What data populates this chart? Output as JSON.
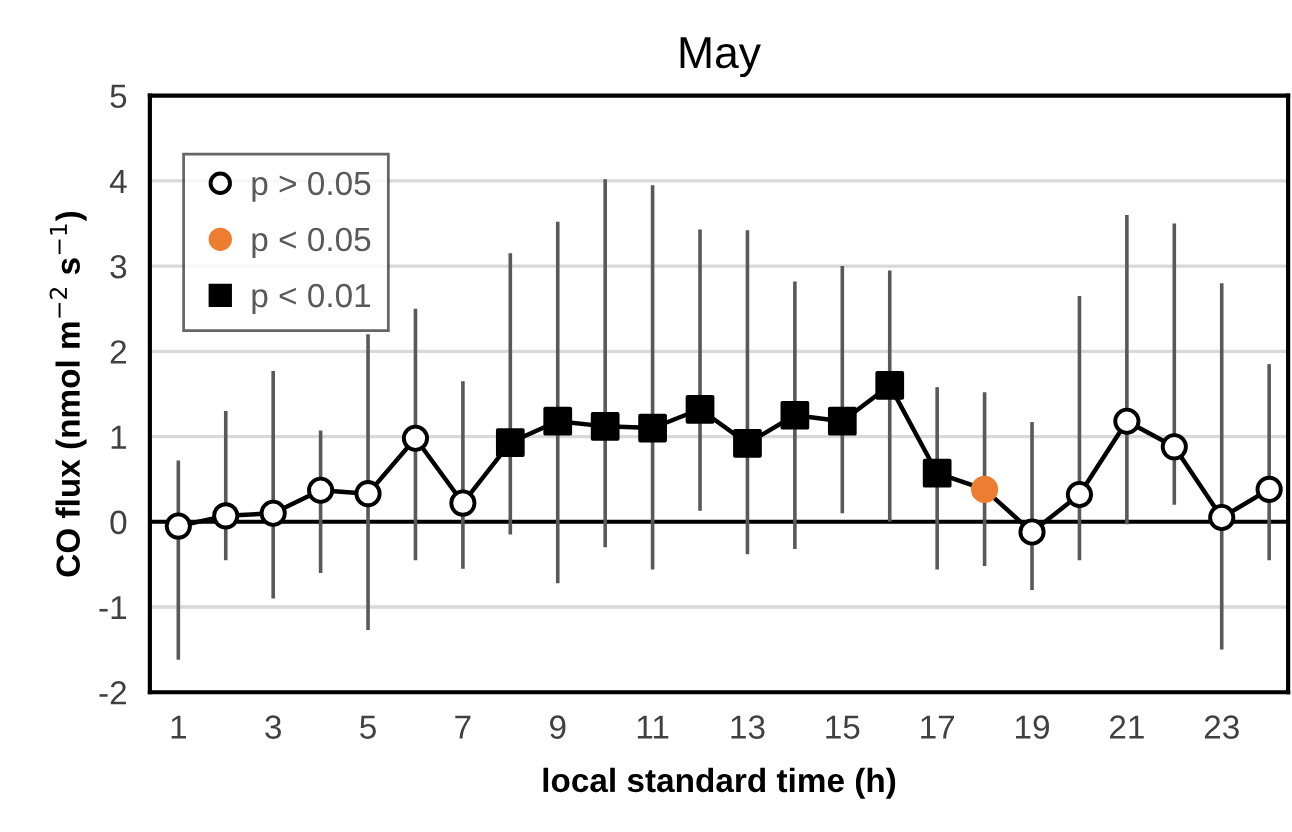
{
  "chart_data": {
    "type": "line",
    "title": "May",
    "xlabel": "local standard time (h)",
    "ylabel": "CO flux (nmol m$^{−2}$ s$^{−1}$)",
    "x": [
      1,
      2,
      3,
      4,
      5,
      6,
      7,
      8,
      9,
      10,
      11,
      12,
      13,
      14,
      15,
      16,
      17,
      18,
      19,
      20,
      21,
      22,
      23,
      24
    ],
    "series": [
      {
        "color": "#000000",
        "marker": "none",
        "values": [
          -0.05,
          0.07,
          0.1,
          0.37,
          0.33,
          0.98,
          0.22,
          0.93,
          1.18,
          1.12,
          1.1,
          1.32,
          0.92,
          1.25,
          1.18,
          1.6,
          0.57,
          0.38,
          -0.12,
          0.32,
          1.18,
          0.88,
          0.05,
          0.38
        ]
      },
      {
        "type": "scatter",
        "name": "p > 0.05",
        "color": "#ffffff",
        "marker": "circle",
        "x": [
          1,
          2,
          3,
          4,
          5,
          6,
          7,
          19,
          20,
          21,
          22,
          23,
          24
        ],
        "values": [
          -0.05,
          0.07,
          0.1,
          0.37,
          0.33,
          0.98,
          0.22,
          -0.12,
          0.32,
          1.18,
          0.88,
          0.05,
          0.38
        ],
        "errors": [
          [
            -1.62,
            0.72
          ],
          [
            -0.45,
            1.3
          ],
          [
            -0.9,
            1.77
          ],
          [
            -0.6,
            1.07
          ],
          [
            -1.27,
            2.2
          ],
          [
            -0.45,
            2.5
          ],
          [
            -0.55,
            1.65
          ],
          [
            -0.8,
            1.17
          ],
          [
            -0.45,
            2.65
          ],
          [
            -0.03,
            3.6
          ],
          [
            0.2,
            3.5
          ],
          [
            -1.5,
            2.8
          ],
          [
            -0.45,
            1.85
          ]
        ]
      },
      {
        "type": "scatter",
        "name": "p < 0.05",
        "color": "#ed7d31",
        "marker": "circle",
        "x": [
          18
        ],
        "values": [
          0.38
        ],
        "errors": [
          [
            -0.52,
            1.52
          ]
        ]
      },
      {
        "type": "scatter",
        "name": "p < 0.01",
        "color": "#000000",
        "marker": "square",
        "x": [
          8,
          9,
          10,
          11,
          12,
          13,
          14,
          15,
          16,
          17
        ],
        "values": [
          0.93,
          1.18,
          1.12,
          1.1,
          1.32,
          0.92,
          1.25,
          1.18,
          1.6,
          0.57
        ],
        "errors": [
          [
            -0.15,
            3.15
          ],
          [
            -0.72,
            3.52
          ],
          [
            -0.3,
            4.02
          ],
          [
            -0.56,
            3.95
          ],
          [
            0.13,
            3.43
          ],
          [
            -0.38,
            3.42
          ],
          [
            -0.32,
            2.82
          ],
          [
            0.1,
            3.0
          ],
          [
            0.0,
            2.95
          ],
          [
            -0.56,
            1.58
          ]
        ]
      }
    ],
    "xlim": [
      0.4,
      24.4
    ],
    "xticks": [
      1,
      3,
      5,
      7,
      9,
      11,
      13,
      15,
      17,
      19,
      21,
      23
    ],
    "ylim": [
      -2,
      5
    ],
    "yticks": [
      -2,
      -1,
      0,
      1,
      2,
      3,
      4,
      5
    ],
    "ref_lines": [
      {
        "axis": "y",
        "value": 0,
        "color": "#000000"
      }
    ],
    "grid": "y",
    "legend": "top left"
  }
}
